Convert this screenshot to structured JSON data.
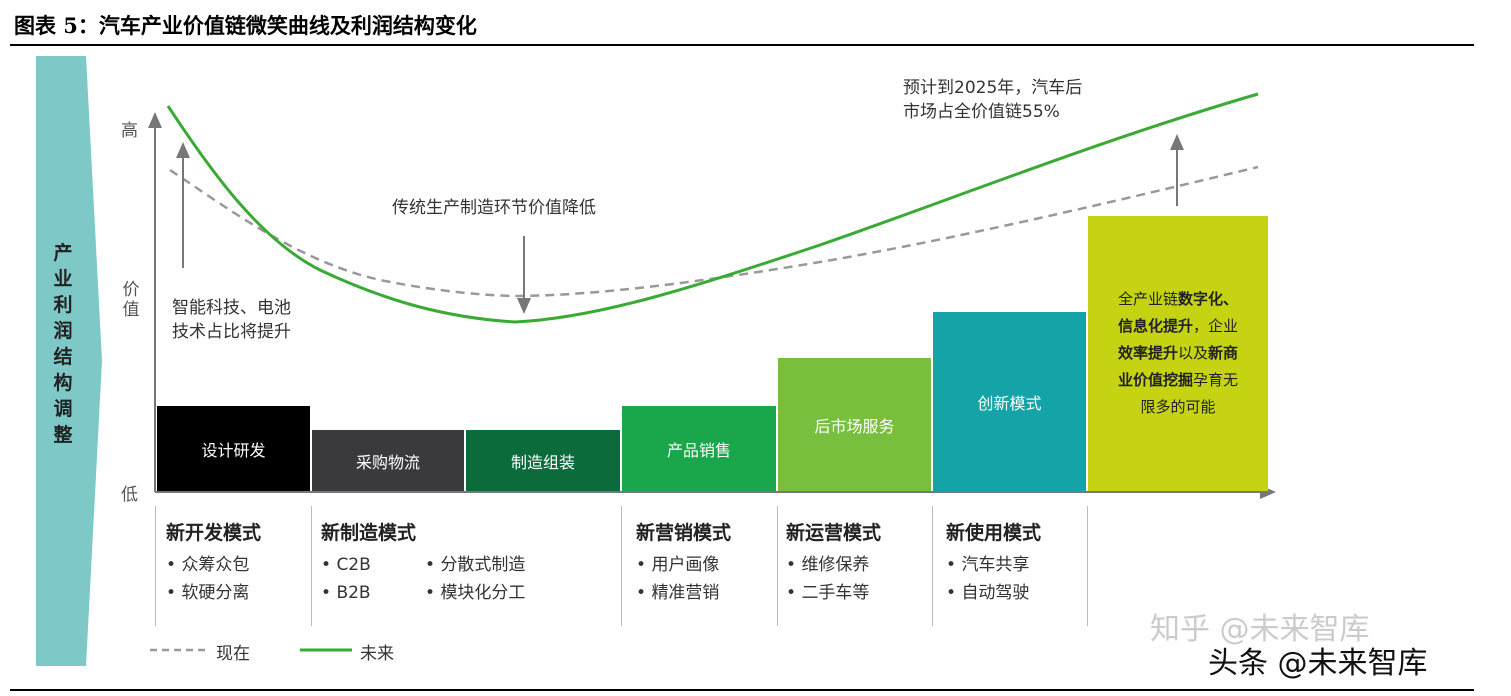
{
  "title": "图表 5：汽车产业价值链微笑曲线及利润结构变化",
  "side_label": "产业利润结构调整",
  "y_axis": {
    "high": "高",
    "mid": "价值",
    "low": "低"
  },
  "bars": [
    {
      "label": "设计研发",
      "color": "#000000"
    },
    {
      "label": "采购物流",
      "color": "#3a3a3c"
    },
    {
      "label": "制造组装",
      "color": "#0b6b3a"
    },
    {
      "label": "产品销售",
      "color": "#1aa64a"
    },
    {
      "label": "后市场服务",
      "color": "#77bf3c"
    },
    {
      "label": "创新模式",
      "color": "#14a3a6"
    },
    {
      "label_parts": [
        "全产业链",
        "数字化、",
        "信息化提升",
        "，企业",
        "效率提升",
        "以及",
        "新商",
        "业价值挖掘",
        "孕育无",
        "限多的可能"
      ],
      "color": "#c5d313"
    }
  ],
  "annotations": {
    "left": [
      "智能科技、电池",
      "技术占比将提升"
    ],
    "middle": "传统生产制造环节价值降低",
    "right": [
      "预计到2025年，汽车后",
      "市场占全价值链55%"
    ]
  },
  "modes": [
    {
      "title": "新开发模式",
      "items": [
        "众筹众包",
        "软硬分离"
      ]
    },
    {
      "title": "新制造模式",
      "items": [
        "C2B",
        "B2B",
        "分散式制造",
        "模块化分工"
      ]
    },
    {
      "title": "新营销模式",
      "items": [
        "用户画像",
        "精准营销"
      ]
    },
    {
      "title": "新运营模式",
      "items": [
        "维修保养",
        "二手车等"
      ]
    },
    {
      "title": "新使用模式",
      "items": [
        "汽车共享",
        "自动驾驶"
      ]
    }
  ],
  "legend": {
    "current": "现在",
    "future": "未来"
  },
  "watermarks": {
    "zhihu": "知乎 @未来智库",
    "toutiao": "头条 @未来智库"
  },
  "colors": {
    "current_line": "#999999",
    "future_line": "#3aaa35",
    "banner": "#7fc8c8",
    "axis": "#777777"
  }
}
